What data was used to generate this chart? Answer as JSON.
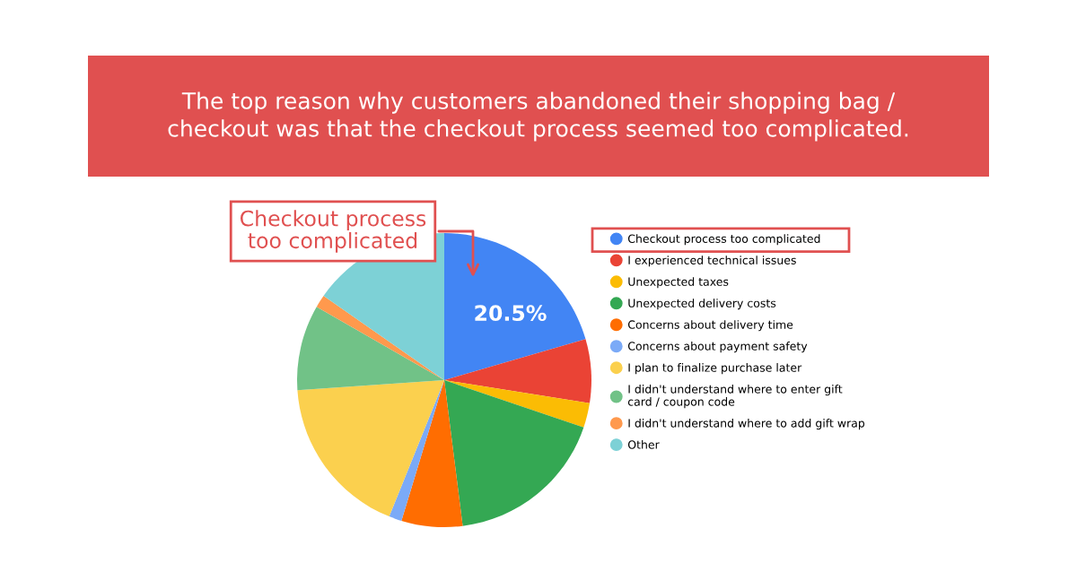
{
  "chart_data": {
    "type": "pie",
    "title": "The top reason why customers abandoned their shopping bag / checkout was that the checkout process seemed too complicated.",
    "categories": [
      "Checkout process too complicated",
      "I experienced technical issues",
      "Unexpected taxes",
      "Unexpected delivery costs",
      "Concerns about delivery time",
      "Concerns about payment safety",
      "I plan to finalize purchase later",
      "I didn't understand where to enter gift card / coupon code",
      "I didn't understand where to add gift wrap",
      "Other"
    ],
    "values": [
      20.5,
      7.0,
      2.7,
      17.8,
      6.7,
      1.4,
      17.8,
      9.4,
      1.4,
      15.3
    ],
    "colors": [
      "#4285f4",
      "#ea4335",
      "#fbbc04",
      "#34a853",
      "#ff6d01",
      "#7baaf7",
      "#fbd04e",
      "#71c287",
      "#ff994d",
      "#7dd1d6"
    ],
    "value_labels": [
      "20.5%",
      null,
      null,
      null,
      null,
      null,
      null,
      null,
      null,
      null
    ],
    "annotations": [
      "Checkout process too complicated"
    ],
    "legend": "right"
  }
}
